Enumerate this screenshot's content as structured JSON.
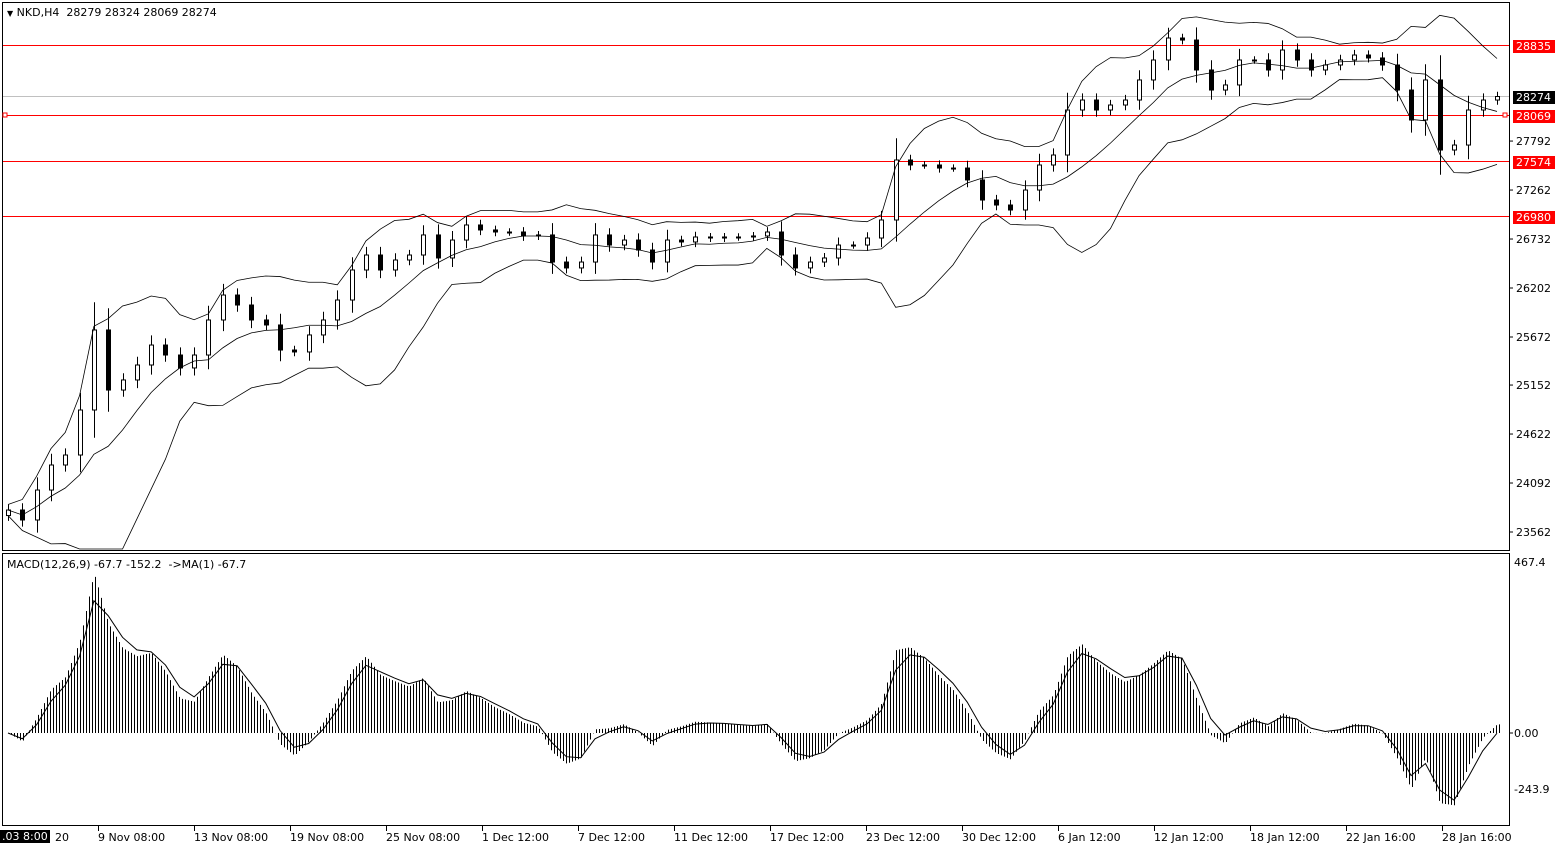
{
  "header": {
    "symbol": "NKD,H4",
    "ohlc": "28279 28324 28069 28274"
  },
  "macd_legend": {
    "label": "MACD(12,26,9)",
    "values": "-67.7 -152.2",
    "signal": "->MA(1) -67.7"
  },
  "colors": {
    "levels": "#ff0000",
    "candles": "#000000",
    "background": "#ffffff",
    "current_price_line": "#c0c0c0"
  },
  "chart_data": {
    "type": "candlestick",
    "symbol": "NKD",
    "timeframe": "H4",
    "indicators": [
      "Bollinger Bands",
      "MACD(12,26,9)"
    ],
    "price_ticks": [
      23562,
      24092,
      24622,
      25152,
      25672,
      26202,
      26732,
      27262,
      27792
    ],
    "levels": [
      28835,
      28069,
      27574,
      26980
    ],
    "current_price": 28274,
    "macd_ticks": [
      "467.4",
      "0.00",
      "-243.9"
    ],
    "time_labels_start": {
      "prefix": ".03 8:00",
      "suffix": "20"
    },
    "time_labels": [
      "9 Nov 08:00",
      "13 Nov 08:00",
      "19 Nov 08:00",
      "25 Nov 08:00",
      "1 Dec 12:00",
      "7 Dec 12:00",
      "11 Dec 12:00",
      "17 Dec 12:00",
      "23 Dec 12:00",
      "30 Dec 12:00",
      "6 Jan 12:00",
      "12 Jan 12:00",
      "18 Jan 12:00",
      "22 Jan 16:00",
      "28 Jan 16:00"
    ],
    "closes": [
      23800,
      23692,
      24016,
      24287,
      24395,
      24882,
      25748,
      25098,
      25207,
      25369,
      25585,
      25477,
      25337,
      25477,
      25856,
      26126,
      26018,
      25856,
      25802,
      25531,
      25510,
      25694,
      25856,
      26072,
      26397,
      26559,
      26397,
      26505,
      26559,
      26776,
      26527,
      26721,
      26884,
      26830,
      26808,
      26808,
      26765,
      26776,
      26483,
      26419,
      26483,
      26776,
      26667,
      26721,
      26613,
      26483,
      26721,
      26700,
      26754,
      26743,
      26754,
      26754,
      26765,
      26808,
      26559,
      26419,
      26483,
      26527,
      26667,
      26667,
      26743,
      26938,
      27587,
      27533,
      27533,
      27500,
      27500,
      27371,
      27154,
      27100,
      27046,
      27262,
      27533,
      27641,
      28128,
      28236,
      28128,
      28182,
      28236,
      28453,
      28669,
      28907,
      28885,
      28561,
      28344,
      28399,
      28669,
      28669,
      28561,
      28777,
      28669,
      28561,
      28615,
      28669,
      28723,
      28691,
      28615,
      28344,
      28020,
      28453,
      27695,
      27749,
      28128,
      28236,
      28274
    ]
  }
}
